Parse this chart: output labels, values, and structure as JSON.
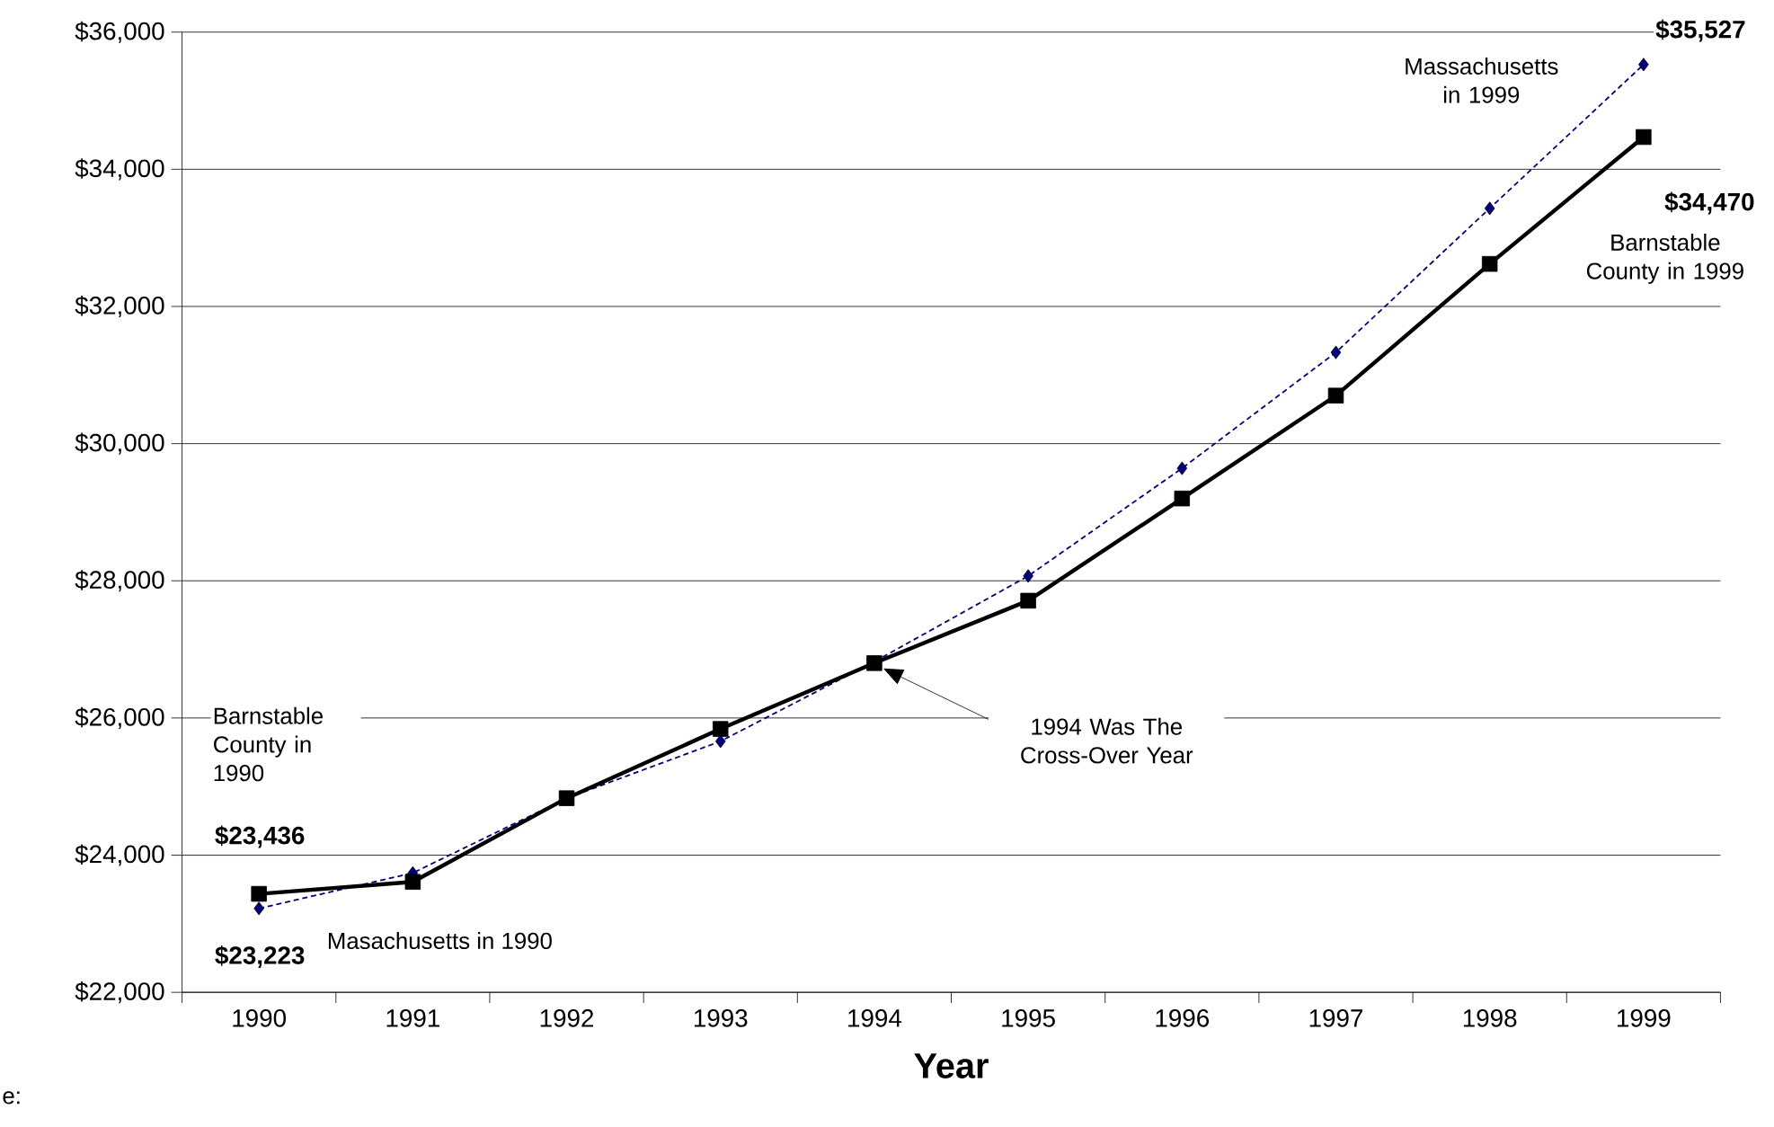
{
  "chart_data": {
    "type": "line",
    "categories": [
      "1990",
      "1991",
      "1992",
      "1993",
      "1994",
      "1995",
      "1996",
      "1997",
      "1998",
      "1999"
    ],
    "series": [
      {
        "color": "#000080",
        "marker": "diamond",
        "line_style": "dotted",
        "values": [
          23223,
          23740,
          24830,
          25660,
          26820,
          28070,
          29640,
          31330,
          33430,
          35527
        ],
        "value_labels": [
          "$23,223",
          null,
          null,
          null,
          null,
          null,
          null,
          null,
          null,
          "$35,527"
        ]
      },
      {
        "color": "#000000",
        "marker": "square",
        "line_style": "solid",
        "values": [
          23436,
          23610,
          24830,
          25840,
          26800,
          27710,
          29200,
          30700,
          32620,
          34470
        ],
        "value_labels": [
          "$23,436",
          null,
          null,
          null,
          null,
          null,
          null,
          null,
          null,
          "$34,470"
        ]
      }
    ],
    "xlabel": "Year",
    "ylim": [
      22000,
      36000
    ],
    "yticks": [
      {
        "value": 22000,
        "label": "$22,000"
      },
      {
        "value": 24000,
        "label": "$24,000"
      },
      {
        "value": 26000,
        "label": "$26,000"
      },
      {
        "value": 28000,
        "label": "$28,000"
      },
      {
        "value": 30000,
        "label": "$30,000"
      },
      {
        "value": 32000,
        "label": "$32,000"
      },
      {
        "value": 34000,
        "label": "$34,000"
      },
      {
        "value": 36000,
        "label": "$36,000"
      }
    ],
    "grid": "y",
    "annotations": [
      "Barnstable County in 1990",
      "Masachusetts in 1990",
      "1994 Was The Cross-Over Year",
      "Massachusetts in 1999",
      "Barnstable County in 1999",
      "e:"
    ]
  }
}
